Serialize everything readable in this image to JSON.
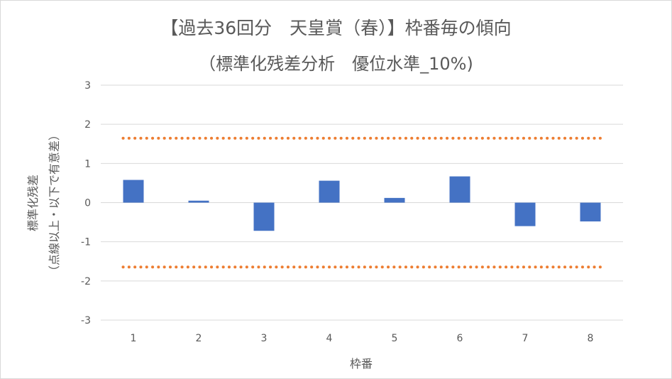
{
  "chart_data": {
    "type": "bar",
    "title": "【過去36回分　天皇賞（春）】枠番毎の傾向",
    "subtitle": "（標準化残差分析　優位水準_10%)",
    "xlabel": "枠番",
    "ylabel_line1": "標準化残差",
    "ylabel_line2": "（点線以上・以下で有意差）",
    "categories": [
      "1",
      "2",
      "3",
      "4",
      "5",
      "6",
      "7",
      "8"
    ],
    "values": [
      0.58,
      0.05,
      -0.72,
      0.56,
      0.12,
      0.67,
      -0.6,
      -0.48
    ],
    "ylim": [
      -3,
      3
    ],
    "yticks": [
      "3",
      "2",
      "1",
      "0",
      "-1",
      "-2",
      "-3"
    ],
    "threshold_lines": [
      1.645,
      -1.645
    ],
    "grid": true,
    "bar_color": "#4472c4",
    "threshold_color": "#ed7d31",
    "grid_color": "#d9d9d9",
    "text_color": "#595959"
  }
}
